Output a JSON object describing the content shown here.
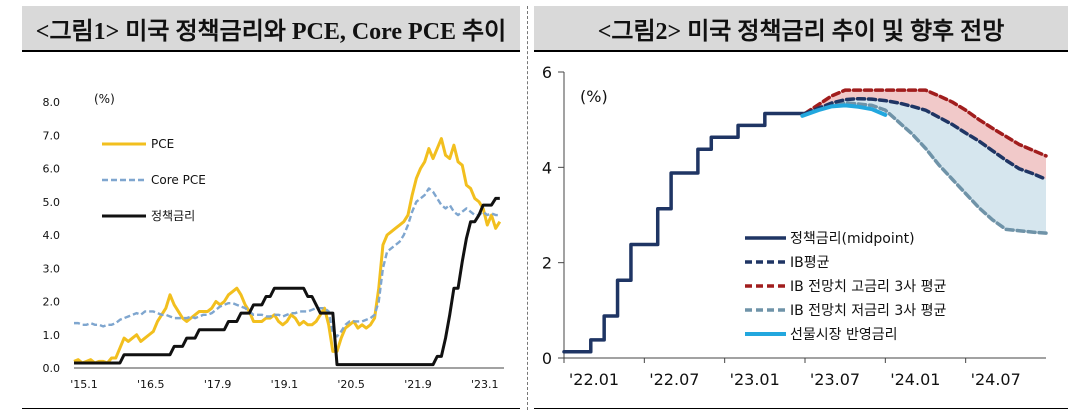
{
  "left_panel": {
    "title": "<그림1> 미국 정책금리와 PCE, Core PCE 추이"
  },
  "right_panel": {
    "title": "<그림2> 미국 정책금리 추이 및 향후 전망"
  },
  "colors": {
    "pce": "#f2bf1e",
    "core_pce": "#7fa6cf",
    "policy_rate": "#111111",
    "midpoint": "#1f3564",
    "ib_avg": "#1f3564",
    "ib_high": "#a11d1d",
    "ib_low": "#6f93a8",
    "futures": "#22a7de",
    "band_high": "#f1c9c9",
    "band_low": "#d6e6ee"
  },
  "chart_data": [
    {
      "type": "line",
      "unit_label": "(%)",
      "ylim": [
        0,
        8
      ],
      "y_ticks": [
        "0.0",
        "1.0",
        "2.0",
        "3.0",
        "4.0",
        "5.0",
        "6.0",
        "7.0",
        "8.0"
      ],
      "x_ticks": [
        "'15.1",
        "'16.5",
        "'17.9",
        "'19.1",
        "'20.5",
        "'21.9",
        "'23.1"
      ],
      "x_tick_pos": [
        0,
        16,
        32,
        48,
        64,
        80,
        96
      ],
      "xlim": [
        0,
        103
      ],
      "legend_position": "top-left",
      "series": [
        {
          "name": "PCE",
          "key": "pce",
          "values": [
            0.2,
            0.25,
            0.15,
            0.2,
            0.25,
            0.15,
            0.2,
            0.2,
            0.15,
            0.3,
            0.3,
            0.6,
            0.9,
            0.8,
            0.9,
            1.0,
            0.8,
            0.9,
            1.0,
            1.1,
            1.4,
            1.6,
            1.8,
            2.2,
            1.9,
            1.7,
            1.5,
            1.4,
            1.5,
            1.6,
            1.7,
            1.7,
            1.7,
            1.8,
            2.0,
            1.9,
            2.0,
            2.2,
            2.3,
            2.4,
            2.2,
            1.9,
            1.7,
            1.4,
            1.4,
            1.4,
            1.5,
            1.5,
            1.6,
            1.4,
            1.3,
            1.4,
            1.6,
            1.5,
            1.3,
            1.4,
            1.3,
            1.3,
            1.4,
            1.6,
            1.8,
            1.3,
            0.5,
            0.5,
            0.9,
            1.2,
            1.3,
            1.4,
            1.2,
            1.3,
            1.2,
            1.3,
            1.5,
            2.4,
            3.7,
            4.0,
            4.1,
            4.2,
            4.3,
            4.4,
            4.6,
            5.2,
            5.7,
            6.0,
            6.2,
            6.6,
            6.3,
            6.6,
            6.9,
            6.4,
            6.3,
            6.7,
            6.2,
            6.1,
            5.5,
            5.4,
            5.1,
            5.0,
            4.8,
            4.3,
            4.6,
            4.2,
            4.4
          ],
          "label": "PCE"
        },
        {
          "name": "Core PCE",
          "key": "core_pce",
          "values": [
            1.35,
            1.35,
            1.3,
            1.3,
            1.35,
            1.3,
            1.3,
            1.25,
            1.3,
            1.3,
            1.35,
            1.45,
            1.5,
            1.55,
            1.6,
            1.65,
            1.6,
            1.7,
            1.7,
            1.7,
            1.65,
            1.6,
            1.6,
            1.55,
            1.5,
            1.5,
            1.5,
            1.5,
            1.55,
            1.5,
            1.55,
            1.6,
            1.6,
            1.65,
            1.75,
            1.85,
            1.9,
            1.95,
            1.95,
            1.9,
            1.85,
            1.8,
            1.7,
            1.6,
            1.6,
            1.6,
            1.55,
            1.55,
            1.6,
            1.6,
            1.55,
            1.6,
            1.65,
            1.65,
            1.7,
            1.7,
            1.7,
            1.75,
            1.8,
            1.8,
            1.8,
            1.7,
            1.05,
            0.95,
            1.1,
            1.3,
            1.4,
            1.4,
            1.4,
            1.4,
            1.45,
            1.5,
            1.6,
            2.0,
            3.0,
            3.5,
            3.6,
            3.7,
            3.8,
            4.0,
            4.3,
            4.7,
            5.0,
            5.1,
            5.2,
            5.4,
            5.3,
            5.1,
            4.9,
            4.8,
            4.9,
            4.7,
            4.6,
            4.7,
            4.8,
            4.7,
            4.6,
            4.6,
            4.7,
            4.6,
            4.65,
            4.6,
            4.6
          ],
          "label": "Core PCE"
        },
        {
          "name": "정책금리",
          "key": "policy_rate",
          "values": [
            0.15,
            0.15,
            0.15,
            0.15,
            0.15,
            0.15,
            0.15,
            0.15,
            0.15,
            0.15,
            0.15,
            0.15,
            0.4,
            0.4,
            0.4,
            0.4,
            0.4,
            0.4,
            0.4,
            0.4,
            0.4,
            0.4,
            0.4,
            0.4,
            0.65,
            0.65,
            0.65,
            0.9,
            0.9,
            0.9,
            1.15,
            1.15,
            1.15,
            1.15,
            1.15,
            1.15,
            1.15,
            1.4,
            1.4,
            1.4,
            1.65,
            1.65,
            1.65,
            1.9,
            1.9,
            1.9,
            2.15,
            2.15,
            2.4,
            2.4,
            2.4,
            2.4,
            2.4,
            2.4,
            2.4,
            2.4,
            2.15,
            2.15,
            1.9,
            1.65,
            1.65,
            1.65,
            1.65,
            0.1,
            0.1,
            0.1,
            0.1,
            0.1,
            0.1,
            0.1,
            0.1,
            0.1,
            0.1,
            0.1,
            0.1,
            0.1,
            0.1,
            0.1,
            0.1,
            0.1,
            0.1,
            0.1,
            0.1,
            0.1,
            0.1,
            0.1,
            0.1,
            0.35,
            0.35,
            0.9,
            1.6,
            2.4,
            2.4,
            3.2,
            3.9,
            4.4,
            4.4,
            4.6,
            4.9,
            4.9,
            4.9,
            5.1,
            5.1
          ],
          "label": "정책금리"
        }
      ]
    },
    {
      "type": "line",
      "unit_label": "(%)",
      "ylim": [
        0,
        6
      ],
      "y_ticks": [
        "0",
        "2",
        "4",
        "6"
      ],
      "x_ticks": [
        "'22.01",
        "'22.07",
        "'23.01",
        "'23.07",
        "'24.01",
        "'24.07"
      ],
      "x_tick_pos": [
        0,
        6,
        12,
        18,
        24,
        30
      ],
      "xlim": [
        0,
        36
      ],
      "legend_position": "bottom-right",
      "series": [
        {
          "name": "정책금리(midpoint)",
          "key": "midpoint",
          "x": [
            0,
            1,
            1,
            2,
            2,
            3,
            3,
            4,
            4,
            5,
            5,
            6,
            6,
            7,
            7,
            8,
            8,
            9,
            9,
            10,
            10,
            11,
            11,
            12,
            12,
            13,
            13,
            14,
            14,
            15,
            15,
            16,
            16,
            17,
            17,
            18
          ],
          "values": [
            0.13,
            0.13,
            0.13,
            0.13,
            0.38,
            0.38,
            0.88,
            0.88,
            1.63,
            1.63,
            2.38,
            2.38,
            2.38,
            2.38,
            3.13,
            3.13,
            3.88,
            3.88,
            3.88,
            3.88,
            4.38,
            4.38,
            4.63,
            4.63,
            4.63,
            4.63,
            4.88,
            4.88,
            4.88,
            4.88,
            5.13,
            5.13,
            5.13,
            5.13,
            5.13,
            5.13
          ],
          "label": "정책금리(midpoint)"
        },
        {
          "name": "IB평균",
          "key": "ib_avg",
          "x": [
            18,
            20,
            21,
            22,
            23,
            24,
            25,
            26,
            27,
            28,
            29,
            30,
            31,
            32,
            33,
            34,
            35,
            36
          ],
          "values": [
            5.13,
            5.35,
            5.42,
            5.44,
            5.43,
            5.4,
            5.35,
            5.28,
            5.2,
            5.05,
            4.9,
            4.72,
            4.55,
            4.35,
            4.15,
            3.97,
            3.87,
            3.75
          ],
          "label": "IB평균"
        },
        {
          "name": "IB 전망치 고금리 3사 평균",
          "key": "ib_high",
          "x": [
            18,
            20,
            21,
            22,
            23,
            24,
            25,
            26,
            27,
            28,
            29,
            30,
            31,
            32,
            33,
            34,
            35,
            36
          ],
          "values": [
            5.13,
            5.5,
            5.62,
            5.62,
            5.62,
            5.62,
            5.62,
            5.62,
            5.62,
            5.5,
            5.37,
            5.2,
            5.0,
            4.82,
            4.65,
            4.48,
            4.36,
            4.24
          ],
          "label": "IB 전망치 고금리 3사 평균"
        },
        {
          "name": "IB 전망치 저금리 3사 평균",
          "key": "ib_low",
          "x": [
            18,
            20,
            21,
            22,
            23,
            24,
            25,
            26,
            27,
            28,
            29,
            30,
            31,
            32,
            33,
            34,
            35,
            36
          ],
          "values": [
            5.13,
            5.3,
            5.35,
            5.33,
            5.3,
            5.2,
            4.95,
            4.7,
            4.4,
            4.05,
            3.75,
            3.45,
            3.15,
            2.9,
            2.7,
            2.67,
            2.64,
            2.62
          ],
          "label": "IB 전망치 저금리 3사 평균"
        },
        {
          "name": "선물시장 반영금리",
          "key": "futures",
          "x": [
            17.8,
            19,
            20,
            21,
            22,
            23,
            24
          ],
          "values": [
            5.08,
            5.2,
            5.28,
            5.3,
            5.27,
            5.22,
            5.1
          ],
          "label": "선물시장 반영금리"
        }
      ]
    }
  ]
}
